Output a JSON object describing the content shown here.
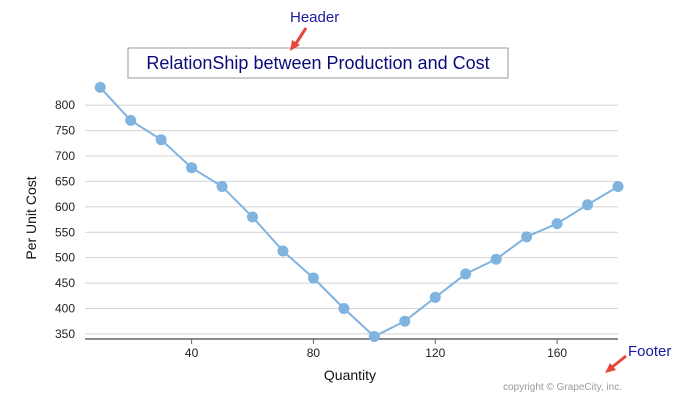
{
  "annotations": {
    "header_label": "Header",
    "footer_label": "Footer",
    "arrow_color": "#e8453c",
    "label_color": "#1a1a9c"
  },
  "footer": {
    "copyright": "copyright © GrapeCity, inc."
  },
  "chart_data": {
    "type": "line",
    "title": "RelationShip between Production and Cost",
    "xlabel": "Quantity",
    "ylabel": "Per Unit Cost",
    "xlim": [
      5,
      180
    ],
    "ylim": [
      340,
      820
    ],
    "x_ticks": [
      40,
      80,
      120,
      160
    ],
    "y_ticks": [
      350,
      400,
      450,
      500,
      550,
      600,
      650,
      700,
      750,
      800
    ],
    "grid": true,
    "legend": "none",
    "line_color": "#7fb3e0",
    "marker_color": "#7fb3e0",
    "series": [
      {
        "x": [
          10,
          20,
          30,
          40,
          50,
          60,
          70,
          80,
          90,
          100,
          110,
          120,
          130,
          140,
          150,
          160,
          170,
          180
        ],
        "values": [
          835,
          770,
          732,
          677,
          640,
          580,
          513,
          460,
          400,
          345,
          375,
          422,
          468,
          497,
          541,
          567,
          604,
          640
        ]
      }
    ]
  }
}
